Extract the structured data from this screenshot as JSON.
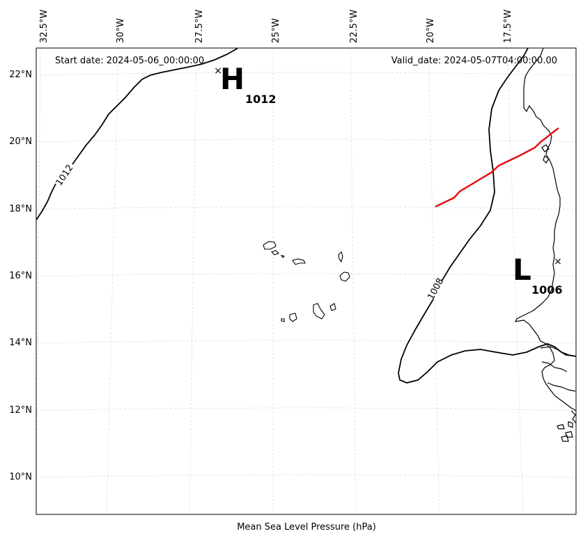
{
  "map": {
    "start_date": "Start date: 2024-05-06_00:00:00",
    "valid_date": "Valid_date: 2024-05-07T04:00:00.00",
    "bottom_label": "Mean Sea Level Pressure (hPa)",
    "lon_ticks": [
      "32.5°W",
      "30°W",
      "27.5°W",
      "25°W",
      "22.5°W",
      "20°W",
      "17.5°W"
    ],
    "lat_ticks": [
      "22°N",
      "20°N",
      "18°N",
      "16°N",
      "14°N",
      "12°N",
      "10°N"
    ],
    "extent": {
      "lon_min": -33.0,
      "lon_max": -16.0,
      "lat_min": 9.0,
      "lat_max": 22.8
    },
    "high_center": {
      "letter": "H",
      "value": "1012",
      "lon": -27.6,
      "lat": 22.1
    },
    "low_center": {
      "letter": "L",
      "value": "1006",
      "lon": -16.5,
      "lat": 16.4
    },
    "isobar_labels": [
      "1012",
      "1008"
    ],
    "colors": {
      "track": "#e8090b",
      "isobar": "#000000",
      "grid": "#d9d9d9"
    }
  }
}
